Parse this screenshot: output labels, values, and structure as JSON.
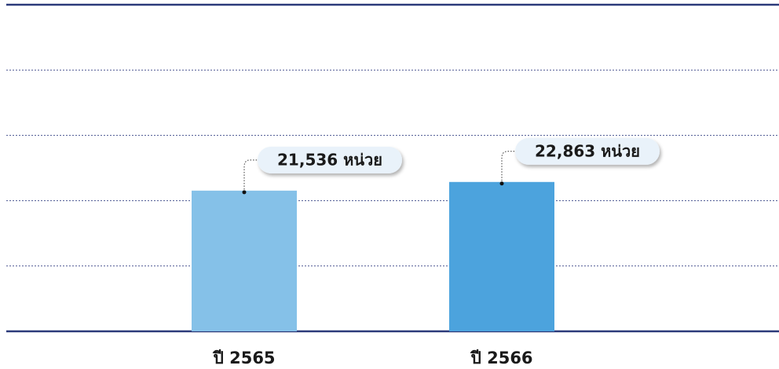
{
  "chart_data": {
    "type": "bar",
    "categories": [
      "ปี 2565",
      "ปี 2566"
    ],
    "values": [
      21536,
      22863
    ],
    "value_labels": [
      "21,536 หน่วย",
      "22,863 หน่วย"
    ],
    "colors": [
      "#85c1e8",
      "#4ca3dd"
    ],
    "ylim": [
      0,
      50000
    ],
    "yticks": [
      0,
      10000,
      20000,
      30000,
      40000,
      50000
    ],
    "grid": true
  }
}
